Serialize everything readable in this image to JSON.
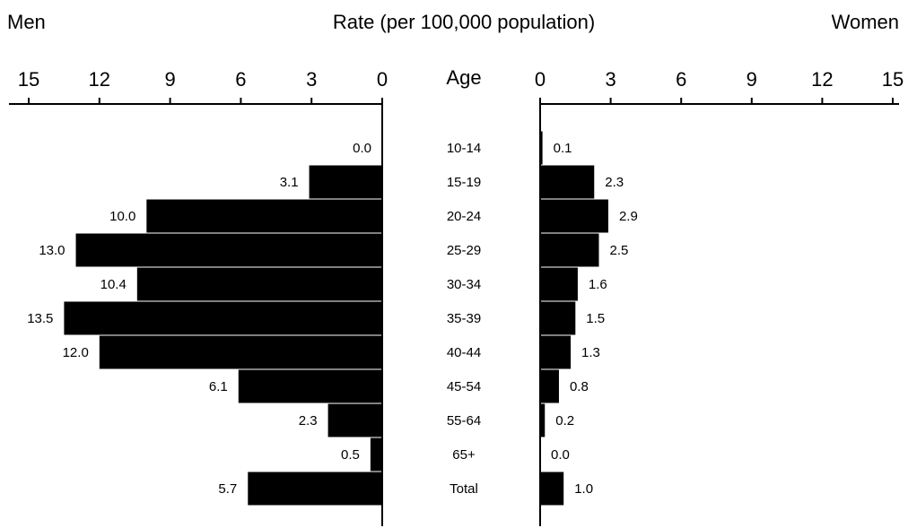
{
  "header": {
    "left_label": "Men",
    "title": "Rate (per 100,000 population)",
    "right_label": "Women",
    "category_header": "Age"
  },
  "chart_data": {
    "type": "bar",
    "orientation": "horizontal",
    "layout": "population-pyramid",
    "title": "Rate (per 100,000 population)",
    "categories": [
      "10-14",
      "15-19",
      "20-24",
      "25-29",
      "30-34",
      "35-39",
      "40-44",
      "45-54",
      "55-64",
      "65+",
      "Total"
    ],
    "series": [
      {
        "name": "Men",
        "values": [
          0.0,
          3.1,
          10.0,
          13.0,
          10.4,
          13.5,
          12.0,
          6.1,
          2.3,
          0.5,
          5.7
        ]
      },
      {
        "name": "Women",
        "values": [
          0.1,
          2.3,
          2.9,
          2.5,
          1.6,
          1.5,
          1.3,
          0.8,
          0.2,
          0.0,
          1.0
        ]
      }
    ],
    "value_labels": {
      "Men": [
        "0.0",
        "3.1",
        "10.0",
        "13.0",
        "10.4",
        "13.5",
        "12.0",
        "6.1",
        "2.3",
        "0.5",
        "5.7"
      ],
      "Women": [
        "0.1",
        "2.3",
        "2.9",
        "2.5",
        "1.6",
        "1.5",
        "1.3",
        "0.8",
        "0.2",
        "0.0",
        "1.0"
      ]
    },
    "xlim": [
      0,
      15
    ],
    "xticks": [
      0,
      3,
      6,
      9,
      12,
      15
    ],
    "bar_color": "#000000",
    "grid": false,
    "legend": "none"
  }
}
